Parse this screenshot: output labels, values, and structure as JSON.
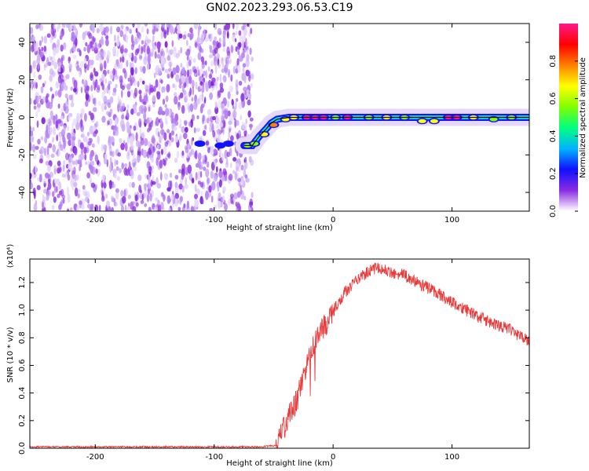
{
  "figure": {
    "title": "GN02.2023.293.06.53.C19"
  },
  "colors": {
    "snr_line": "#e83a3a",
    "trace": "#000000",
    "noise_colors": [
      "#7b1fd6",
      "#9a3fe6",
      "#b07cf0",
      "#cdb0f7",
      "#e4d4fb"
    ]
  },
  "colorbar": {
    "label": "Normalized spectral amplitude",
    "ticks": [
      "0.0",
      "0.2",
      "0.4",
      "0.6",
      "0.8"
    ],
    "tick_values": [
      0.0,
      0.2,
      0.4,
      0.6,
      0.8
    ],
    "range": [
      0,
      1
    ],
    "colormap": [
      "#ffffff",
      "#8a2be2",
      "#1010ff",
      "#00b4ff",
      "#00ff80",
      "#80ff00",
      "#ffff00",
      "#ff8000",
      "#ff0000",
      "#ff1a8c"
    ]
  },
  "chart_data": [
    {
      "type": "heatmap",
      "xlabel": "Height of straight line (km)",
      "ylabel": "Frequency (Hz)",
      "xlim": [
        -255,
        165
      ],
      "ylim": [
        -50,
        50
      ],
      "xticks": [
        -200,
        -100,
        0,
        100
      ],
      "xtick_labels": [
        "-200",
        "-100",
        "0",
        "100"
      ],
      "yticks": [
        -40,
        -20,
        0,
        20,
        40
      ],
      "ytick_labels": [
        "-40",
        "-20",
        "0",
        "20",
        "40"
      ],
      "noise_region_x": [
        -255,
        -68
      ],
      "trace": {
        "x": [
          -75,
          -68,
          -62,
          -56,
          -52,
          -47,
          -42,
          -37,
          -32,
          -20,
          0,
          20,
          40,
          60,
          80,
          100,
          120,
          140,
          165
        ],
        "y": [
          -15,
          -15,
          -10,
          -6,
          -3,
          -1,
          -0.5,
          0,
          0,
          0,
          0,
          0,
          0,
          0,
          0,
          0,
          0,
          0,
          0
        ]
      },
      "blobs": [
        {
          "x": -112,
          "y": -14,
          "amp": 0.25
        },
        {
          "x": -95,
          "y": -15,
          "amp": 0.25
        },
        {
          "x": -88,
          "y": -14,
          "amp": 0.2
        },
        {
          "x": -72,
          "y": -15,
          "amp": 0.55
        },
        {
          "x": -66,
          "y": -14,
          "amp": 0.6
        },
        {
          "x": -58,
          "y": -9,
          "amp": 0.7
        },
        {
          "x": -50,
          "y": -4,
          "amp": 0.75
        },
        {
          "x": -40,
          "y": -1,
          "amp": 0.7
        },
        {
          "x": -33,
          "y": 0,
          "amp": 0.65
        },
        {
          "x": -22,
          "y": 0,
          "amp": 0.95
        },
        {
          "x": -15,
          "y": 0,
          "amp": 0.95
        },
        {
          "x": -8,
          "y": 0,
          "amp": 0.95
        },
        {
          "x": 2,
          "y": 0,
          "amp": 0.6
        },
        {
          "x": 12,
          "y": 0,
          "amp": 0.95
        },
        {
          "x": 30,
          "y": 0,
          "amp": 0.6
        },
        {
          "x": 45,
          "y": 0,
          "amp": 0.7
        },
        {
          "x": 60,
          "y": 0,
          "amp": 0.6
        },
        {
          "x": 75,
          "y": -2,
          "amp": 0.65
        },
        {
          "x": 85,
          "y": -2,
          "amp": 0.7
        },
        {
          "x": 97,
          "y": 0,
          "amp": 0.95
        },
        {
          "x": 104,
          "y": 0,
          "amp": 0.95
        },
        {
          "x": 118,
          "y": 0,
          "amp": 0.65
        },
        {
          "x": 135,
          "y": -1,
          "amp": 0.6
        },
        {
          "x": 150,
          "y": 0,
          "amp": 0.6
        }
      ]
    },
    {
      "type": "line",
      "xlabel": "Height of straight line (km)",
      "ylabel": "SNR (10 * v/v)",
      "y_multiplier": "(x10⁴)",
      "xlim": [
        -255,
        165
      ],
      "ylim": [
        0,
        1.37
      ],
      "xticks": [
        -200,
        -100,
        0,
        100
      ],
      "xtick_labels": [
        "-200",
        "-100",
        "0",
        "100"
      ],
      "yticks": [
        0.0,
        0.2,
        0.4,
        0.6,
        0.8,
        1.0,
        1.2
      ],
      "ytick_labels": [
        "0.0",
        "0.2",
        "0.4",
        "0.6",
        "0.8",
        "1.0",
        "1.2"
      ],
      "series": [
        {
          "x": [
            -255,
            -200,
            -150,
            -100,
            -60,
            -48,
            -45,
            -42,
            -40,
            -38,
            -35,
            -30,
            -25,
            -20,
            -15,
            -10,
            -5,
            0,
            5,
            10,
            15,
            20,
            25,
            30,
            35,
            40,
            50,
            60,
            70,
            80,
            90,
            100,
            110,
            120,
            130,
            140,
            150,
            160,
            165
          ],
          "y": [
            0.01,
            0.01,
            0.01,
            0.01,
            0.01,
            0.02,
            0.06,
            0.18,
            0.15,
            0.22,
            0.28,
            0.36,
            0.52,
            0.66,
            0.76,
            0.85,
            0.9,
            0.99,
            1.06,
            1.13,
            1.18,
            1.22,
            1.25,
            1.28,
            1.3,
            1.3,
            1.27,
            1.25,
            1.2,
            1.16,
            1.11,
            1.06,
            1.01,
            0.96,
            0.92,
            0.89,
            0.85,
            0.8,
            0.76
          ]
        }
      ]
    }
  ]
}
